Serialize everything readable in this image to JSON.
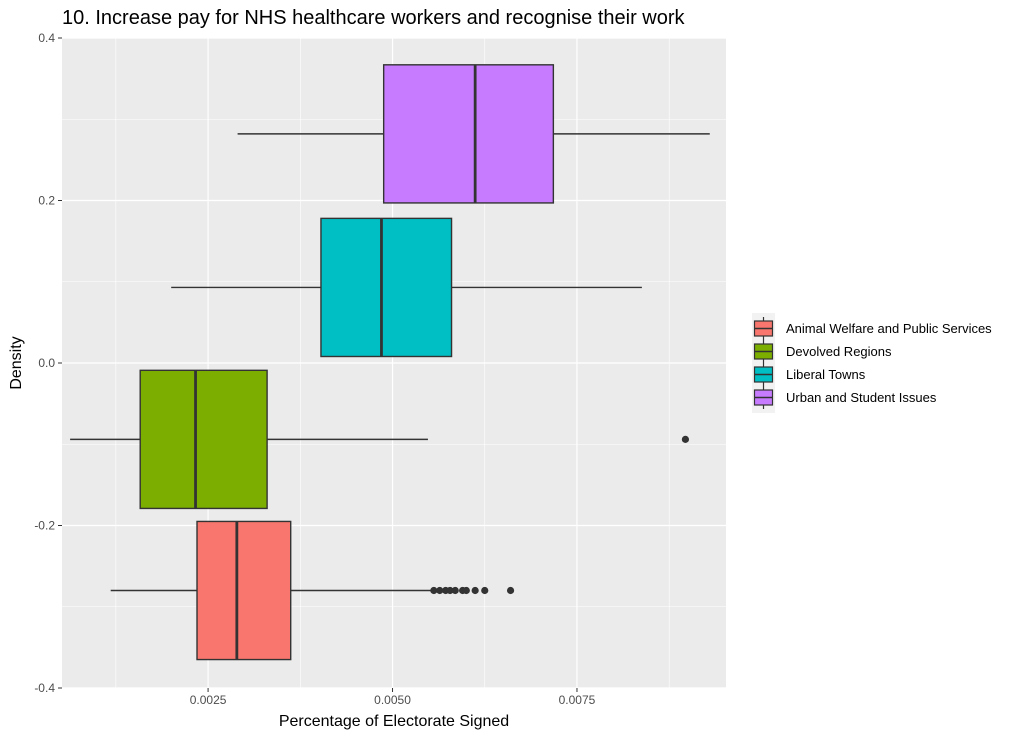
{
  "chart_data": {
    "type": "boxplot",
    "title": "10. Increase pay for NHS healthcare workers and recognise their work",
    "xlabel": "Percentage of Electorate Signed",
    "ylabel": "Density",
    "xlim": [
      0.00052,
      0.00952
    ],
    "ylim": [
      -0.4,
      0.4
    ],
    "x_ticks": [
      {
        "value": 0.0025,
        "label": "0.0025"
      },
      {
        "value": 0.005,
        "label": "0.0050"
      },
      {
        "value": 0.0075,
        "label": "0.0075"
      }
    ],
    "y_ticks": [
      {
        "value": -0.4,
        "label": "-0.4"
      },
      {
        "value": -0.2,
        "label": "-0.2"
      },
      {
        "value": 0.0,
        "label": "0.0"
      },
      {
        "value": 0.2,
        "label": "0.2"
      },
      {
        "value": 0.4,
        "label": "0.4"
      }
    ],
    "grid": true,
    "legend_position": "right",
    "series": [
      {
        "name": "Animal Welfare and Public Services",
        "color": "#F8766D",
        "y_center": -0.28,
        "y_half_height": 0.085,
        "whisker_low": 0.00118,
        "q1": 0.00235,
        "median": 0.00289,
        "q3": 0.00362,
        "whisker_high": 0.00552,
        "outliers": [
          0.00556,
          0.00564,
          0.00572,
          0.00578,
          0.00585,
          0.00595,
          0.006,
          0.00612,
          0.00625,
          0.0066
        ]
      },
      {
        "name": "Devolved Regions",
        "color": "#7CAE00",
        "y_center": -0.094,
        "y_half_height": 0.085,
        "whisker_low": 0.00063,
        "q1": 0.00158,
        "median": 0.00233,
        "q3": 0.0033,
        "whisker_high": 0.00548,
        "outliers": [
          0.00897
        ]
      },
      {
        "name": "Liberal Towns",
        "color": "#00BFC4",
        "y_center": 0.093,
        "y_half_height": 0.085,
        "whisker_low": 0.002,
        "q1": 0.00403,
        "median": 0.00485,
        "q3": 0.0058,
        "whisker_high": 0.00838,
        "outliers": []
      },
      {
        "name": "Urban and Student Issues",
        "color": "#C77CFF",
        "y_center": 0.282,
        "y_half_height": 0.085,
        "whisker_low": 0.0029,
        "q1": 0.00488,
        "median": 0.00612,
        "q3": 0.00718,
        "whisker_high": 0.0093,
        "outliers": []
      }
    ]
  }
}
